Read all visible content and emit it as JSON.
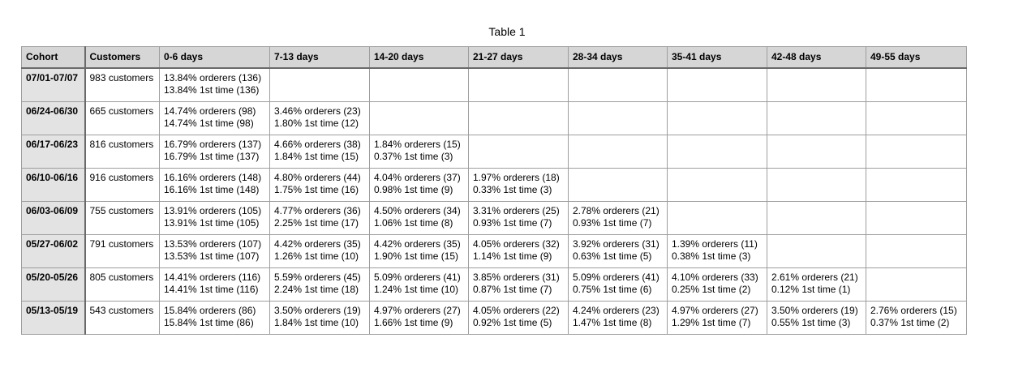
{
  "title": "Table 1",
  "columns": [
    "Cohort",
    "Customers",
    "0-6 days",
    "7-13 days",
    "14-20 days",
    "21-27 days",
    "28-34 days",
    "35-41 days",
    "42-48 days",
    "49-55 days"
  ],
  "rows": [
    {
      "cohort": "07/01-07/07",
      "customers": "983 customers",
      "cells": [
        [
          "13.84% orderers (136)",
          "13.84% 1st time (136)"
        ],
        [
          "",
          ""
        ],
        [
          "",
          ""
        ],
        [
          "",
          ""
        ],
        [
          "",
          ""
        ],
        [
          "",
          ""
        ],
        [
          "",
          ""
        ],
        [
          "",
          ""
        ]
      ]
    },
    {
      "cohort": "06/24-06/30",
      "customers": "665 customers",
      "cells": [
        [
          "14.74% orderers (98)",
          "14.74% 1st time (98)"
        ],
        [
          "3.46% orderers (23)",
          "1.80% 1st time (12)"
        ],
        [
          "",
          ""
        ],
        [
          "",
          ""
        ],
        [
          "",
          ""
        ],
        [
          "",
          ""
        ],
        [
          "",
          ""
        ],
        [
          "",
          ""
        ]
      ]
    },
    {
      "cohort": "06/17-06/23",
      "customers": "816 customers",
      "cells": [
        [
          "16.79% orderers (137)",
          "16.79% 1st time (137)"
        ],
        [
          "4.66% orderers (38)",
          "1.84% 1st time (15)"
        ],
        [
          "1.84% orderers (15)",
          "0.37% 1st time (3)"
        ],
        [
          "",
          ""
        ],
        [
          "",
          ""
        ],
        [
          "",
          ""
        ],
        [
          "",
          ""
        ],
        [
          "",
          ""
        ]
      ]
    },
    {
      "cohort": "06/10-06/16",
      "customers": "916 customers",
      "cells": [
        [
          "16.16% orderers (148)",
          "16.16% 1st time (148)"
        ],
        [
          "4.80% orderers (44)",
          "1.75% 1st time (16)"
        ],
        [
          "4.04% orderers (37)",
          "0.98% 1st time (9)"
        ],
        [
          "1.97% orderers (18)",
          "0.33% 1st time (3)"
        ],
        [
          "",
          ""
        ],
        [
          "",
          ""
        ],
        [
          "",
          ""
        ],
        [
          "",
          ""
        ]
      ]
    },
    {
      "cohort": "06/03-06/09",
      "customers": "755 customers",
      "cells": [
        [
          "13.91% orderers (105)",
          "13.91% 1st time (105)"
        ],
        [
          "4.77% orderers (36)",
          "2.25% 1st time (17)"
        ],
        [
          "4.50% orderers (34)",
          "1.06% 1st time (8)"
        ],
        [
          "3.31% orderers (25)",
          "0.93% 1st time (7)"
        ],
        [
          "2.78% orderers (21)",
          "0.93% 1st time (7)"
        ],
        [
          "",
          ""
        ],
        [
          "",
          ""
        ],
        [
          "",
          ""
        ]
      ]
    },
    {
      "cohort": "05/27-06/02",
      "customers": "791 customers",
      "cells": [
        [
          "13.53% orderers (107)",
          "13.53% 1st time (107)"
        ],
        [
          "4.42% orderers (35)",
          "1.26% 1st time (10)"
        ],
        [
          "4.42% orderers (35)",
          "1.90% 1st time (15)"
        ],
        [
          "4.05% orderers (32)",
          "1.14% 1st time (9)"
        ],
        [
          "3.92% orderers (31)",
          "0.63% 1st time (5)"
        ],
        [
          "1.39% orderers (11)",
          "0.38% 1st time (3)"
        ],
        [
          "",
          ""
        ],
        [
          "",
          ""
        ]
      ]
    },
    {
      "cohort": "05/20-05/26",
      "customers": "805 customers",
      "cells": [
        [
          "14.41% orderers (116)",
          "14.41% 1st time (116)"
        ],
        [
          "5.59% orderers (45)",
          "2.24% 1st time (18)"
        ],
        [
          "5.09% orderers (41)",
          "1.24% 1st time (10)"
        ],
        [
          "3.85% orderers (31)",
          "0.87% 1st time (7)"
        ],
        [
          "5.09% orderers (41)",
          "0.75% 1st time (6)"
        ],
        [
          "4.10% orderers (33)",
          "0.25% 1st time (2)"
        ],
        [
          "2.61% orderers (21)",
          "0.12% 1st time (1)"
        ],
        [
          "",
          ""
        ]
      ]
    },
    {
      "cohort": "05/13-05/19",
      "customers": "543 customers",
      "cells": [
        [
          "15.84% orderers (86)",
          "15.84% 1st time (86)"
        ],
        [
          "3.50% orderers (19)",
          "1.84% 1st time (10)"
        ],
        [
          "4.97% orderers (27)",
          "1.66% 1st time (9)"
        ],
        [
          "4.05% orderers (22)",
          "0.92% 1st time (5)"
        ],
        [
          "4.24% orderers (23)",
          "1.47% 1st time (8)"
        ],
        [
          "4.97% orderers (27)",
          "1.29% 1st time (7)"
        ],
        [
          "3.50% orderers (19)",
          "0.55% 1st time (3)"
        ],
        [
          "2.76% orderers (15)",
          "0.37% 1st time (2)"
        ]
      ]
    }
  ]
}
